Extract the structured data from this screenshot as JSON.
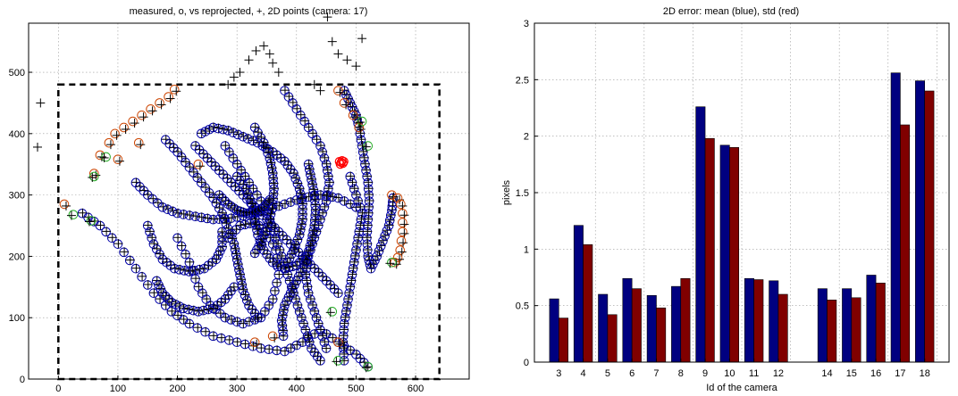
{
  "chart_data": [
    {
      "type": "scatter",
      "title": "measured, o, vs reprojected, +,  2D points (camera: 17)",
      "xlabel": "",
      "ylabel": "",
      "xlim": [
        -50,
        690
      ],
      "ylim": [
        0,
        580
      ],
      "xticks": [
        0,
        100,
        200,
        300,
        400,
        500,
        600
      ],
      "yticks": [
        0,
        100,
        200,
        300,
        400,
        500
      ],
      "grid": true,
      "legend": "none",
      "colors": {
        "measured": "#0000aa",
        "outlier": "#cc4400",
        "green": "#22aa22",
        "reprojected": "#000000",
        "red_blob": "#ff0000"
      },
      "image_rectangle": {
        "x": [
          0,
          640
        ],
        "y": [
          0,
          480
        ]
      },
      "red_blob": {
        "x": 475,
        "y": 353
      },
      "reprojected_outliers": [
        [
          -30,
          450
        ],
        [
          -35,
          378
        ],
        [
          345,
          543
        ],
        [
          332,
          535
        ],
        [
          355,
          530
        ],
        [
          320,
          520
        ],
        [
          360,
          515
        ],
        [
          305,
          500
        ],
        [
          295,
          492
        ],
        [
          285,
          480
        ],
        [
          370,
          500
        ],
        [
          452,
          590
        ],
        [
          460,
          550
        ],
        [
          470,
          530
        ],
        [
          485,
          520
        ],
        [
          500,
          510
        ],
        [
          510,
          555
        ],
        [
          440,
          470
        ],
        [
          430,
          480
        ]
      ],
      "orange_circles": [
        [
          10,
          285
        ],
        [
          60,
          335
        ],
        [
          70,
          365
        ],
        [
          85,
          385
        ],
        [
          95,
          400
        ],
        [
          110,
          410
        ],
        [
          125,
          420
        ],
        [
          140,
          430
        ],
        [
          155,
          440
        ],
        [
          170,
          450
        ],
        [
          185,
          460
        ],
        [
          195,
          472
        ],
        [
          100,
          358
        ],
        [
          135,
          385
        ],
        [
          235,
          350
        ],
        [
          470,
          470
        ],
        [
          480,
          450
        ],
        [
          495,
          430
        ],
        [
          505,
          410
        ],
        [
          560,
          300
        ],
        [
          570,
          295
        ],
        [
          575,
          285
        ],
        [
          578,
          270
        ],
        [
          578,
          255
        ],
        [
          578,
          240
        ],
        [
          576,
          225
        ],
        [
          574,
          210
        ],
        [
          570,
          198
        ],
        [
          565,
          190
        ],
        [
          360,
          70
        ],
        [
          330,
          60
        ],
        [
          470,
          60
        ]
      ],
      "green_circles": [
        [
          25,
          268
        ],
        [
          55,
          258
        ],
        [
          60,
          330
        ],
        [
          80,
          362
        ],
        [
          510,
          420
        ],
        [
          520,
          380
        ],
        [
          560,
          190
        ],
        [
          470,
          30
        ],
        [
          460,
          110
        ],
        [
          520,
          20
        ]
      ],
      "trajectories": [
        {
          "points": [
            [
              40,
              270
            ],
            [
              70,
              250
            ],
            [
              100,
              220
            ],
            [
              130,
              180
            ],
            [
              160,
              140
            ],
            [
              190,
              110
            ],
            [
              220,
              90
            ],
            [
              260,
              70
            ],
            [
              300,
              60
            ],
            [
              340,
              50
            ],
            [
              380,
              45
            ],
            [
              410,
              60
            ],
            [
              440,
              80
            ],
            [
              470,
              60
            ],
            [
              500,
              40
            ],
            [
              520,
              20
            ]
          ]
        },
        {
          "points": [
            [
              200,
              230
            ],
            [
              220,
              190
            ],
            [
              235,
              150
            ],
            [
              255,
              120
            ],
            [
              280,
              100
            ],
            [
              310,
              90
            ],
            [
              340,
              100
            ],
            [
              360,
              130
            ],
            [
              370,
              170
            ],
            [
              365,
              210
            ],
            [
              350,
              240
            ],
            [
              330,
              255
            ],
            [
              305,
              250
            ],
            [
              285,
              230
            ]
          ]
        },
        {
          "points": [
            [
              280,
              380
            ],
            [
              300,
              350
            ],
            [
              320,
              320
            ],
            [
              340,
              290
            ],
            [
              355,
              260
            ],
            [
              365,
              230
            ],
            [
              375,
              200
            ],
            [
              385,
              170
            ],
            [
              395,
              140
            ],
            [
              405,
              110
            ],
            [
              415,
              80
            ],
            [
              425,
              50
            ],
            [
              440,
              30
            ]
          ]
        },
        {
          "points": [
            [
              230,
              380
            ],
            [
              250,
              360
            ],
            [
              270,
              340
            ],
            [
              290,
              320
            ],
            [
              310,
              300
            ],
            [
              330,
              280
            ],
            [
              350,
              260
            ],
            [
              370,
              240
            ],
            [
              390,
              220
            ],
            [
              410,
              200
            ],
            [
              430,
              180
            ],
            [
              450,
              160
            ],
            [
              470,
              140
            ]
          ]
        },
        {
          "points": [
            [
              380,
              470
            ],
            [
              400,
              440
            ],
            [
              420,
              410
            ],
            [
              440,
              380
            ],
            [
              450,
              350
            ],
            [
              455,
              320
            ],
            [
              450,
              290
            ],
            [
              440,
              260
            ],
            [
              430,
              230
            ],
            [
              420,
              200
            ],
            [
              415,
              170
            ],
            [
              420,
              140
            ],
            [
              430,
              110
            ],
            [
              440,
              80
            ],
            [
              450,
              50
            ]
          ]
        },
        {
          "points": [
            [
              130,
              320
            ],
            [
              150,
              300
            ],
            [
              175,
              280
            ],
            [
              200,
              270
            ],
            [
              230,
              265
            ],
            [
              260,
              260
            ],
            [
              290,
              262
            ],
            [
              320,
              268
            ],
            [
              350,
              275
            ],
            [
              380,
              285
            ],
            [
              410,
              295
            ],
            [
              440,
              300
            ],
            [
              470,
              295
            ],
            [
              500,
              280
            ]
          ]
        },
        {
          "points": [
            [
              180,
              390
            ],
            [
              200,
              370
            ],
            [
              220,
              345
            ],
            [
              240,
              320
            ],
            [
              260,
              295
            ],
            [
              275,
              270
            ],
            [
              285,
              245
            ],
            [
              295,
              220
            ],
            [
              300,
              195
            ],
            [
              305,
              170
            ],
            [
              310,
              145
            ],
            [
              320,
              120
            ],
            [
              335,
              100
            ]
          ]
        },
        {
          "points": [
            [
              240,
              400
            ],
            [
              260,
              410
            ],
            [
              285,
              405
            ],
            [
              310,
              395
            ],
            [
              335,
              385
            ],
            [
              360,
              370
            ],
            [
              380,
              355
            ],
            [
              395,
              335
            ],
            [
              405,
              310
            ],
            [
              410,
              285
            ],
            [
              410,
              260
            ],
            [
              405,
              235
            ],
            [
              395,
              210
            ],
            [
              385,
              190
            ]
          ]
        },
        {
          "points": [
            [
              480,
              470
            ],
            [
              490,
              450
            ],
            [
              500,
              430
            ],
            [
              505,
              410
            ],
            [
              510,
              380
            ],
            [
              515,
              350
            ],
            [
              520,
              320
            ],
            [
              522,
              290
            ],
            [
              520,
              260
            ],
            [
              518,
              230
            ],
            [
              520,
              200
            ],
            [
              525,
              180
            ],
            [
              535,
              200
            ],
            [
              545,
              225
            ],
            [
              555,
              250
            ],
            [
              560,
              275
            ],
            [
              562,
              295
            ]
          ]
        },
        {
          "points": [
            [
              490,
              330
            ],
            [
              500,
              300
            ],
            [
              510,
              270
            ],
            [
              505,
              240
            ],
            [
              500,
              210
            ],
            [
              495,
              180
            ],
            [
              490,
              150
            ],
            [
              485,
              120
            ],
            [
              480,
              90
            ],
            [
              478,
              60
            ],
            [
              480,
              30
            ]
          ]
        },
        {
          "points": [
            [
              150,
              250
            ],
            [
              160,
              220
            ],
            [
              175,
              195
            ],
            [
              195,
              180
            ],
            [
              220,
              175
            ],
            [
              245,
              180
            ],
            [
              265,
              195
            ],
            [
              275,
              215
            ],
            [
              275,
              240
            ]
          ]
        },
        {
          "points": [
            [
              300,
              330
            ],
            [
              315,
              310
            ],
            [
              325,
              285
            ],
            [
              330,
              260
            ],
            [
              335,
              235
            ],
            [
              345,
              210
            ],
            [
              360,
              190
            ],
            [
              380,
              180
            ],
            [
              400,
              185
            ],
            [
              415,
              200
            ]
          ]
        },
        {
          "points": [
            [
              420,
              350
            ],
            [
              425,
              325
            ],
            [
              430,
              300
            ],
            [
              432,
              275
            ],
            [
              430,
              250
            ],
            [
              425,
              225
            ],
            [
              418,
              200
            ],
            [
              410,
              180
            ],
            [
              400,
              160
            ],
            [
              390,
              140
            ],
            [
              380,
              120
            ],
            [
              375,
              95
            ],
            [
              378,
              70
            ]
          ]
        },
        {
          "points": [
            [
              165,
              160
            ],
            [
              175,
              140
            ],
            [
              190,
              125
            ],
            [
              210,
              115
            ],
            [
              235,
              110
            ],
            [
              260,
              115
            ],
            [
              280,
              130
            ],
            [
              295,
              150
            ]
          ]
        },
        {
          "points": [
            [
              330,
              410
            ],
            [
              345,
              385
            ],
            [
              355,
              360
            ],
            [
              360,
              335
            ],
            [
              362,
              310
            ],
            [
              360,
              285
            ],
            [
              355,
              260
            ],
            [
              348,
              240
            ],
            [
              340,
              222
            ],
            [
              330,
              205
            ]
          ]
        },
        {
          "points": [
            [
              270,
              300
            ],
            [
              285,
              285
            ],
            [
              300,
              275
            ],
            [
              315,
              270
            ],
            [
              330,
              272
            ],
            [
              345,
              280
            ],
            [
              355,
              292
            ]
          ]
        }
      ]
    },
    {
      "type": "bar",
      "title": "2D error: mean (blue), std (red)",
      "xlabel": "Id of the camera",
      "ylabel": "pixels",
      "ylim": [
        0,
        3
      ],
      "xlim": [
        2,
        19
      ],
      "yticks": [
        "0",
        "0.5",
        "1",
        "1.5",
        "2",
        "2.5",
        "3"
      ],
      "grid": true,
      "legend": "none",
      "categories": [
        "3",
        "4",
        "5",
        "6",
        "7",
        "8",
        "9",
        "10",
        "11",
        "12",
        "14",
        "15",
        "16",
        "17",
        "18"
      ],
      "series": [
        {
          "values": [
            0.56,
            1.21,
            0.6,
            0.74,
            0.59,
            0.67,
            2.26,
            1.92,
            0.74,
            0.72,
            0.65,
            0.65,
            0.77,
            2.56,
            2.49
          ],
          "color": "#000080"
        },
        {
          "values": [
            0.39,
            1.04,
            0.42,
            0.65,
            0.48,
            0.74,
            1.98,
            1.9,
            0.73,
            0.6,
            0.55,
            0.57,
            0.7,
            2.1,
            2.4
          ],
          "color": "#800000"
        }
      ]
    }
  ]
}
